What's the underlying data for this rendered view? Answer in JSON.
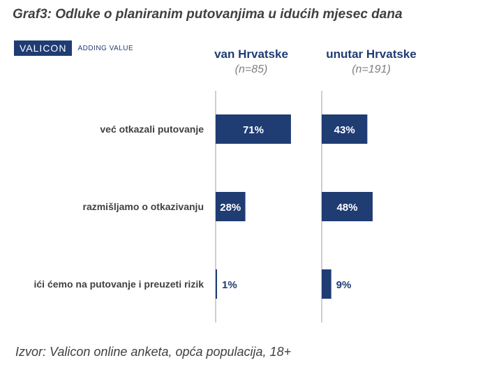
{
  "title": "Graf3: Odluke o planiranim putovanjima u idućih mjesec dana",
  "logo": {
    "brand": "VALICON",
    "tagline": "ADDING VALUE"
  },
  "footer": "Izvor: Valicon online anketa, opća populacija, 18+",
  "colors": {
    "bar": "#1f3c73",
    "axis": "#bfbfbf",
    "label_inside": "#ffffff",
    "label_outside": "#1f3c73"
  },
  "chart_data": {
    "type": "bar",
    "orientation": "horizontal",
    "categories": [
      "već otkazali putovanje",
      "razmišljamo o otkazivanju",
      "ići ćemo na putovanje i preuzeti rizik"
    ],
    "series": [
      {
        "name": "van Hrvatske",
        "n": "(n=85)",
        "values": [
          71,
          28,
          1
        ],
        "labels": [
          "71%",
          "28%",
          "1%"
        ]
      },
      {
        "name": "unutar Hrvatske",
        "n": "(n=191)",
        "values": [
          43,
          48,
          9
        ],
        "labels": [
          "43%",
          "48%",
          "9%"
        ]
      }
    ],
    "unit": "%"
  }
}
